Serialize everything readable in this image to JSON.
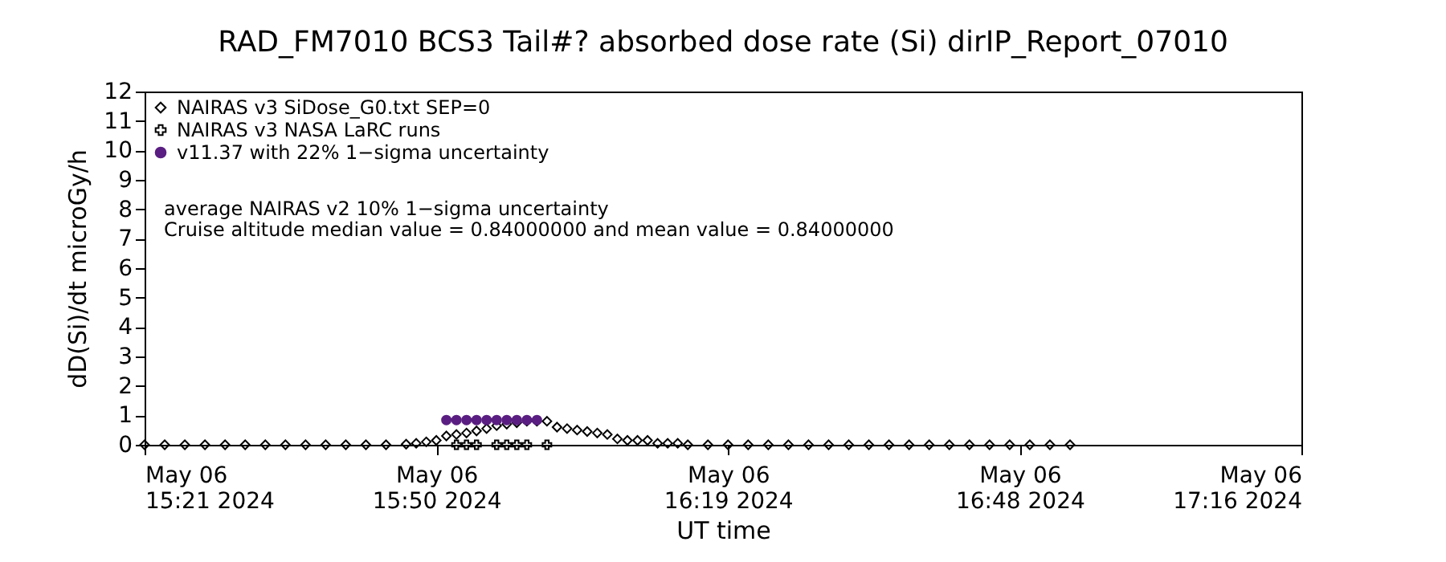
{
  "chart_data": {
    "type": "scatter",
    "title": "RAD_FM7010  BCS3 Tail#? absorbed dose rate (Si) dirIP_Report_07010",
    "xlabel": "UT time",
    "ylabel": "dD(Si)/dt microGy/h",
    "xlim": [
      "2024-05-06T15:21",
      "2024-05-06T17:16"
    ],
    "xticks": [
      {
        "value": "2024-05-06T15:21",
        "label": "May 06\n15:21 2024"
      },
      {
        "value": "2024-05-06T15:50",
        "label": "May 06\n15:50 2024"
      },
      {
        "value": "2024-05-06T16:19",
        "label": "May 06\n16:19 2024"
      },
      {
        "value": "2024-05-06T16:48",
        "label": "May 06\n16:48 2024"
      },
      {
        "value": "2024-05-06T17:16",
        "label": "May 06\n17:16 2024"
      }
    ],
    "ylim": [
      0,
      12
    ],
    "yticks": [
      0,
      1,
      2,
      3,
      4,
      5,
      6,
      7,
      8,
      9,
      10,
      11,
      12
    ],
    "grid": false,
    "legend": "top left",
    "annotations": [
      "average NAIRAS v2 10% 1−sigma uncertainty",
      "Cruise altitude median value = 0.84000000 and mean value = 0.84000000"
    ],
    "series": [
      {
        "name": "NAIRAS v3 SiDose_G0.txt SEP=0",
        "color": "#000000",
        "marker": "diamond",
        "x": [
          "2024-05-06T15:21",
          "2024-05-06T15:23",
          "2024-05-06T15:25",
          "2024-05-06T15:27",
          "2024-05-06T15:29",
          "2024-05-06T15:31",
          "2024-05-06T15:33",
          "2024-05-06T15:35",
          "2024-05-06T15:37",
          "2024-05-06T15:39",
          "2024-05-06T15:41",
          "2024-05-06T15:43",
          "2024-05-06T15:45",
          "2024-05-06T15:47",
          "2024-05-06T15:48",
          "2024-05-06T15:49",
          "2024-05-06T15:50",
          "2024-05-06T15:51",
          "2024-05-06T15:52",
          "2024-05-06T15:53",
          "2024-05-06T15:54",
          "2024-05-06T15:55",
          "2024-05-06T15:56",
          "2024-05-06T15:57",
          "2024-05-06T15:58",
          "2024-05-06T15:59",
          "2024-05-06T16:00",
          "2024-05-06T16:01",
          "2024-05-06T16:02",
          "2024-05-06T16:03",
          "2024-05-06T16:04",
          "2024-05-06T16:05",
          "2024-05-06T16:06",
          "2024-05-06T16:07",
          "2024-05-06T16:08",
          "2024-05-06T16:09",
          "2024-05-06T16:10",
          "2024-05-06T16:11",
          "2024-05-06T16:12",
          "2024-05-06T16:13",
          "2024-05-06T16:14",
          "2024-05-06T16:15",
          "2024-05-06T16:17",
          "2024-05-06T16:19",
          "2024-05-06T16:21",
          "2024-05-06T16:23",
          "2024-05-06T16:25",
          "2024-05-06T16:27",
          "2024-05-06T16:29",
          "2024-05-06T16:31",
          "2024-05-06T16:33",
          "2024-05-06T16:35",
          "2024-05-06T16:37",
          "2024-05-06T16:39",
          "2024-05-06T16:41",
          "2024-05-06T16:43",
          "2024-05-06T16:45",
          "2024-05-06T16:47",
          "2024-05-06T16:49",
          "2024-05-06T16:51",
          "2024-05-06T16:53"
        ],
        "values": [
          0,
          0,
          0,
          0,
          0,
          0,
          0,
          0,
          0,
          0,
          0,
          0,
          0,
          0.02,
          0.05,
          0.1,
          0.15,
          0.3,
          0.35,
          0.4,
          0.47,
          0.55,
          0.65,
          0.7,
          0.75,
          0.8,
          0.8,
          0.8,
          0.6,
          0.55,
          0.5,
          0.45,
          0.4,
          0.35,
          0.2,
          0.15,
          0.15,
          0.15,
          0.05,
          0.05,
          0.05,
          0,
          0,
          0,
          0,
          0,
          0,
          0,
          0,
          0,
          0,
          0,
          0,
          0,
          0,
          0,
          0,
          0,
          0,
          0,
          0
        ]
      },
      {
        "name": "NAIRAS v3 NASA LaRC runs",
        "color": "#000000",
        "marker": "cross",
        "x": [
          "2024-05-06T15:52",
          "2024-05-06T15:53",
          "2024-05-06T15:54",
          "2024-05-06T15:56",
          "2024-05-06T15:57",
          "2024-05-06T15:58",
          "2024-05-06T15:59",
          "2024-05-06T16:01"
        ],
        "values": [
          0,
          0,
          0,
          0,
          0,
          0,
          0,
          0
        ]
      },
      {
        "name": "v11.37 with 22% 1−sigma uncertainty",
        "color": "#5a1e82",
        "marker": "circle",
        "x": [
          "2024-05-06T15:51",
          "2024-05-06T15:52",
          "2024-05-06T15:53",
          "2024-05-06T15:54",
          "2024-05-06T15:55",
          "2024-05-06T15:56",
          "2024-05-06T15:57",
          "2024-05-06T15:58",
          "2024-05-06T15:59",
          "2024-05-06T16:00"
        ],
        "values": [
          0.84,
          0.84,
          0.84,
          0.84,
          0.84,
          0.84,
          0.84,
          0.84,
          0.84,
          0.84
        ]
      }
    ]
  }
}
